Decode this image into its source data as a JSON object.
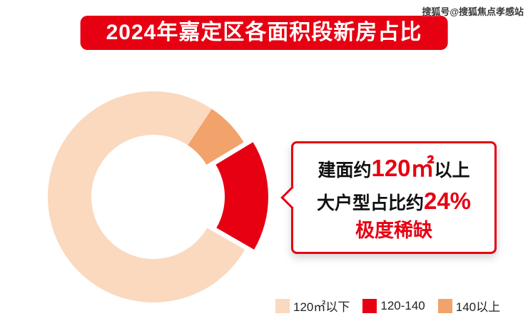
{
  "header": {
    "title": "2024年嘉定区各面积段新房占比"
  },
  "watermark": {
    "text": "搜狐号@搜狐焦点孝感站"
  },
  "chart_data": {
    "type": "pie",
    "variant": "donut",
    "title": "2024年嘉定区各面积段新房占比",
    "unit": "%",
    "start_angle_deg": 120,
    "legend_position": "bottom",
    "slices": [
      {
        "label": "120㎡以下",
        "value": 76,
        "color": "#fad9bf",
        "exploded": false
      },
      {
        "label": "140以上",
        "value": 7,
        "color": "#f2a36b",
        "exploded": false
      },
      {
        "label": "120-140",
        "value": 17,
        "color": "#e60012",
        "exploded": true
      }
    ],
    "annotation": "建面约120㎡以上大户型占比约24% 极度稀缺"
  },
  "callout": {
    "line1_prefix": "建面约",
    "line1_value": "120㎡",
    "line1_suffix": "以上",
    "line2_prefix": "大户型占比约",
    "line2_value": "24%",
    "line3": "极度稀缺"
  },
  "legend": {
    "items": [
      {
        "label": "120㎡以下",
        "color": "#fad9bf"
      },
      {
        "label": "120-140",
        "color": "#e60012"
      },
      {
        "label": "140以上",
        "color": "#f2a36b"
      }
    ]
  },
  "colors": {
    "accent_red": "#e60012",
    "peach": "#fad9bf",
    "orange": "#f2a36b"
  }
}
